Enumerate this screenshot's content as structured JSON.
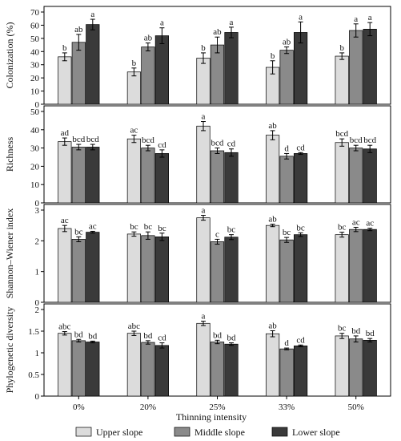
{
  "colors": {
    "upper": "#dcdcdc",
    "middle": "#8a8a8a",
    "lower": "#3a3a3a"
  },
  "chart_data": {
    "type": "bar",
    "categories": [
      "0%",
      "20%",
      "25%",
      "33%",
      "50%"
    ],
    "xlabel": "Thinning intensity",
    "legend": {
      "position": "bottom",
      "entries": [
        "Upper slope",
        "Middle slope",
        "Lower slope"
      ]
    },
    "panels": [
      {
        "ylabel": "Colonization (%)",
        "ylim": [
          0,
          70
        ],
        "yticks": [
          0,
          10,
          20,
          30,
          40,
          50,
          60,
          70
        ],
        "series": [
          {
            "name": "Upper slope",
            "values": [
              36,
              24.5,
              35,
              28,
              36.5
            ],
            "errors": [
              3,
              3,
              4,
              5,
              2.5
            ],
            "letters": [
              "b",
              "b",
              "b",
              "b",
              "b"
            ]
          },
          {
            "name": "Middle slope",
            "values": [
              47,
              43.5,
              45,
              41,
              56
            ],
            "errors": [
              6,
              3,
              6,
              2.5,
              5
            ],
            "letters": [
              "ab",
              "ab",
              "ab",
              "ab",
              "a"
            ]
          },
          {
            "name": "Lower slope",
            "values": [
              60.5,
              52,
              54.5,
              54.5,
              57
            ],
            "errors": [
              4,
              6,
              4,
              8,
              5
            ],
            "letters": [
              "a",
              "a",
              "a",
              "a",
              "a"
            ]
          }
        ]
      },
      {
        "ylabel": "Richness",
        "ylim": [
          0,
          50
        ],
        "yticks": [
          0,
          10,
          20,
          30,
          40,
          50
        ],
        "series": [
          {
            "name": "Upper slope",
            "values": [
              33.5,
              35,
              42,
              37,
              33
            ],
            "errors": [
              2,
              2,
              2.5,
              2.5,
              2
            ],
            "letters": [
              "ad",
              "ac",
              "a",
              "ab",
              "bcd"
            ]
          },
          {
            "name": "Middle slope",
            "values": [
              30.5,
              30,
              28.5,
              25.5,
              30
            ],
            "errors": [
              1.5,
              1.5,
              1.5,
              1.5,
              1.5
            ],
            "letters": [
              "bcd",
              "bcd",
              "bcd",
              "d",
              "bcd"
            ]
          },
          {
            "name": "Lower slope",
            "values": [
              30.5,
              27,
              27.5,
              27,
              29.5
            ],
            "errors": [
              1.5,
              2,
              2,
              0.5,
              2
            ],
            "letters": [
              "bcd",
              "cd",
              "cd",
              "cd",
              "bcd"
            ]
          }
        ]
      },
      {
        "ylabel": "Shannon–Wiener index",
        "ylim": [
          0,
          3
        ],
        "yticks": [
          0,
          1,
          2,
          3
        ],
        "series": [
          {
            "name": "Upper slope",
            "values": [
              2.4,
              2.22,
              2.75,
              2.5,
              2.2
            ],
            "errors": [
              0.1,
              0.07,
              0.08,
              0.04,
              0.08
            ],
            "letters": [
              "ac",
              "bc",
              "a",
              "ab",
              "bc"
            ]
          },
          {
            "name": "Middle slope",
            "values": [
              2.05,
              2.17,
              1.97,
              2.03,
              2.37
            ],
            "errors": [
              0.08,
              0.12,
              0.08,
              0.08,
              0.07
            ],
            "letters": [
              "bc",
              "bc",
              "c",
              "bc",
              "ac"
            ]
          },
          {
            "name": "Lower slope",
            "values": [
              2.28,
              2.13,
              2.12,
              2.2,
              2.37
            ],
            "errors": [
              0.03,
              0.12,
              0.08,
              0.06,
              0.04
            ],
            "letters": [
              "ac",
              "bc",
              "bc",
              "bc",
              "ac"
            ]
          }
        ]
      },
      {
        "ylabel": "Phylogenetic diversity",
        "ylim": [
          0,
          2
        ],
        "yticks": [
          0,
          0.5,
          1,
          1.5,
          2
        ],
        "series": [
          {
            "name": "Upper slope",
            "values": [
              1.45,
              1.45,
              1.68,
              1.44,
              1.39
            ],
            "errors": [
              0.04,
              0.05,
              0.05,
              0.07,
              0.06
            ],
            "letters": [
              "abc",
              "abc",
              "a",
              "ab",
              "bc"
            ]
          },
          {
            "name": "Middle slope",
            "values": [
              1.28,
              1.24,
              1.25,
              1.09,
              1.32
            ],
            "errors": [
              0.03,
              0.04,
              0.04,
              0.02,
              0.07
            ],
            "letters": [
              "bd",
              "bd",
              "bd",
              "d",
              "bd"
            ]
          },
          {
            "name": "Lower slope",
            "values": [
              1.25,
              1.17,
              1.2,
              1.16,
              1.29
            ],
            "errors": [
              0.02,
              0.06,
              0.03,
              0.02,
              0.04
            ],
            "letters": [
              "bd",
              "cd",
              "bd",
              "cd",
              "bd"
            ]
          }
        ]
      }
    ]
  }
}
